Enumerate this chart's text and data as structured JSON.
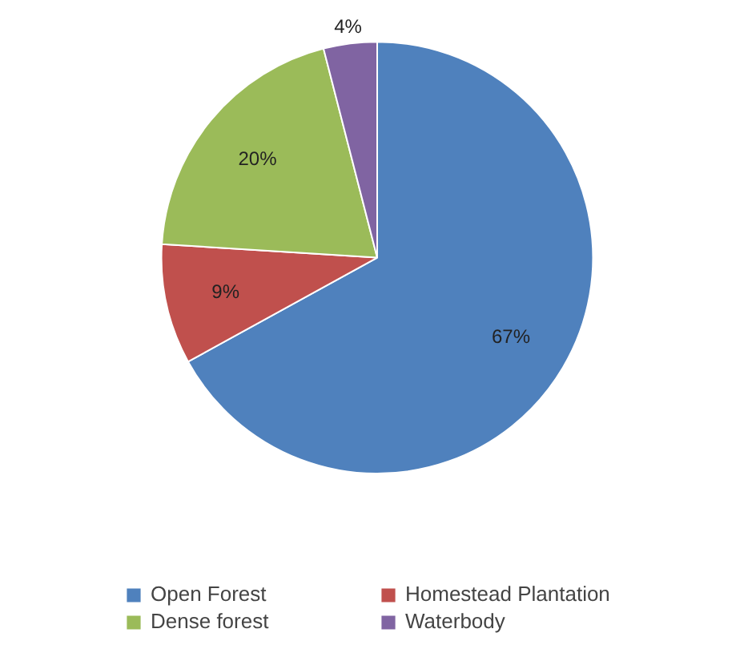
{
  "chart_data": {
    "type": "pie",
    "categories": [
      "Open Forest",
      "Homestead Plantation",
      "Dense forest",
      "Waterbody"
    ],
    "values": [
      67,
      9,
      20,
      4
    ],
    "colors": [
      "#4f81bd",
      "#c0504d",
      "#9bbb59",
      "#8064a2"
    ],
    "value_labels": [
      "67%",
      "9%",
      "20%",
      "4%"
    ],
    "legend": "bottom"
  }
}
